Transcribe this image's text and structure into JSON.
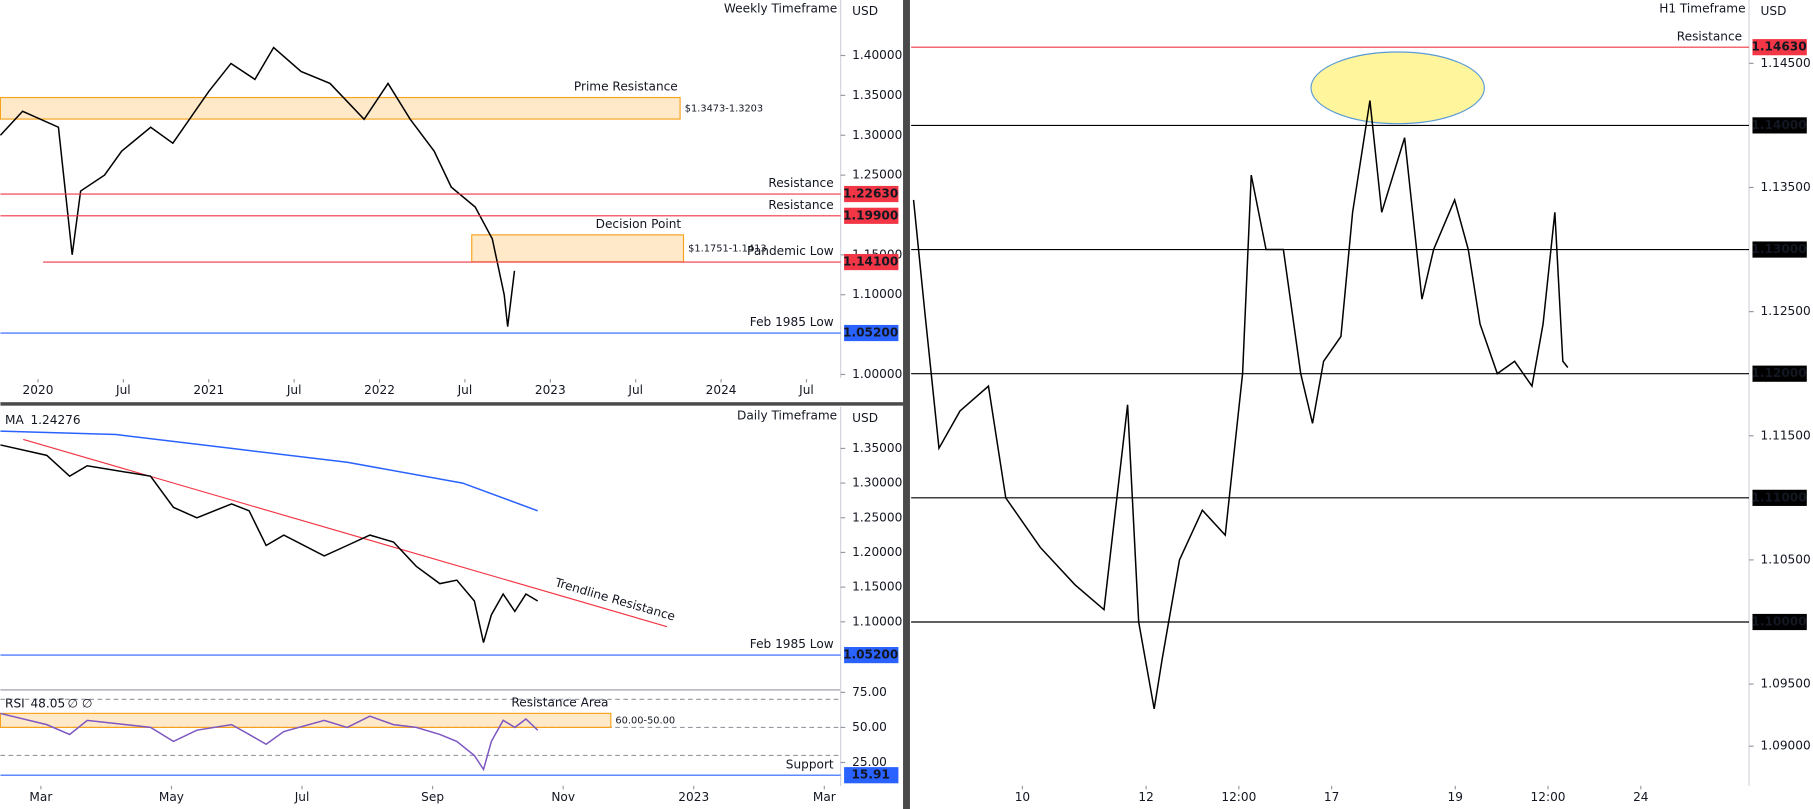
{
  "chart_data": [
    {
      "type": "line",
      "title": "Weekly Timeframe",
      "unit": "USD",
      "xlim": [
        2019.78,
        2024.7
      ],
      "ylim": [
        0.9957,
        1.4696
      ],
      "xticks": [
        {
          "value": 2020,
          "label": "2020"
        },
        {
          "value": 2020.5,
          "label": "Jul"
        },
        {
          "value": 2021,
          "label": "2021"
        },
        {
          "value": 2021.5,
          "label": "Jul"
        },
        {
          "value": 2022,
          "label": "2022"
        },
        {
          "value": 2022.5,
          "label": "Jul"
        },
        {
          "value": 2023,
          "label": "2023"
        },
        {
          "value": 2023.5,
          "label": "Jul"
        },
        {
          "value": 2024,
          "label": "2024"
        },
        {
          "value": 2024.5,
          "label": "Jul"
        }
      ],
      "yticks": [
        {
          "value": 1.0,
          "label": "1.00000"
        },
        {
          "value": 1.1,
          "label": "1.10000"
        },
        {
          "value": 1.15,
          "label": "1.15000"
        },
        {
          "value": 1.25,
          "label": "1.25000"
        },
        {
          "value": 1.3,
          "label": "1.30000"
        },
        {
          "value": 1.35,
          "label": "1.35000"
        },
        {
          "value": 1.4,
          "label": "1.40000"
        }
      ],
      "series": [
        {
          "color": "#000000",
          "x": [
            2019.78,
            2019.91,
            2020.12,
            2020.2,
            2020.25,
            2020.39,
            2020.49,
            2020.66,
            2020.79,
            2021.0,
            2021.13,
            2021.27,
            2021.38,
            2021.54,
            2021.71,
            2021.91,
            2022.05,
            2022.18,
            2022.32,
            2022.42,
            2022.56,
            2022.66,
            2022.73,
            2022.75,
            2022.79
          ],
          "values": [
            1.3,
            1.33,
            1.31,
            1.15,
            1.23,
            1.25,
            1.28,
            1.31,
            1.29,
            1.355,
            1.39,
            1.37,
            1.41,
            1.38,
            1.365,
            1.32,
            1.365,
            1.32,
            1.28,
            1.235,
            1.21,
            1.17,
            1.1,
            1.06,
            1.13
          ]
        }
      ],
      "zones": [
        {
          "name": "Prime Resistance",
          "range": [
            1.3203,
            1.3473
          ],
          "x": [
            2019.78,
            2023.76
          ],
          "label": "$1.3473-1.3203"
        },
        {
          "name": "Decision Point",
          "range": [
            1.1413,
            1.1751
          ],
          "x": [
            2022.54,
            2023.78
          ],
          "label": "$1.1751-1.1413"
        }
      ],
      "levels": [
        {
          "name": "Resistance",
          "value": 1.2263,
          "label": "1.22630",
          "color": "#f23645"
        },
        {
          "name": "Resistance",
          "value": 1.199,
          "label": "1.19900",
          "color": "#f23645"
        },
        {
          "name": "Pandemic Low",
          "value": 1.141,
          "label": "1.14100",
          "color": "#f23645",
          "from": 2020.03
        },
        {
          "name": "Feb 1985 Low",
          "value": 1.052,
          "label": "1.05200",
          "color": "#2962ff"
        }
      ]
    },
    {
      "type": "line",
      "title": "Daily Timeframe",
      "unit": "USD",
      "xlim": [
        1.38,
        14.25
      ],
      "ylim": [
        1.0017,
        1.41
      ],
      "xticks": [
        {
          "value": 2,
          "label": "Mar"
        },
        {
          "value": 4,
          "label": "May"
        },
        {
          "value": 6,
          "label": "Jul"
        },
        {
          "value": 8,
          "label": "Sep"
        },
        {
          "value": 10,
          "label": "Nov"
        },
        {
          "value": 12,
          "label": "2023"
        },
        {
          "value": 14,
          "label": "Mar"
        }
      ],
      "yticks": [
        {
          "value": 1.1,
          "label": "1.10000"
        },
        {
          "value": 1.15,
          "label": "1.15000"
        },
        {
          "value": 1.2,
          "label": "1.20000"
        },
        {
          "value": 1.25,
          "label": "1.25000"
        },
        {
          "value": 1.3,
          "label": "1.30000"
        },
        {
          "value": 1.35,
          "label": "1.35000"
        }
      ],
      "indicator": {
        "name": "MA",
        "value": 1.24276,
        "color": "#2962ff"
      },
      "series": [
        {
          "color": "#000000",
          "x": [
            1.38,
            2.09,
            2.44,
            2.71,
            3.68,
            4.03,
            4.39,
            4.92,
            5.19,
            5.45,
            5.72,
            6.34,
            6.69,
            7.04,
            7.4,
            7.75,
            8.11,
            8.37,
            8.64,
            8.78,
            8.9,
            9.08,
            9.26,
            9.43,
            9.61
          ],
          "values": [
            1.355,
            1.34,
            1.31,
            1.325,
            1.31,
            1.265,
            1.25,
            1.27,
            1.26,
            1.21,
            1.225,
            1.195,
            1.21,
            1.225,
            1.215,
            1.18,
            1.155,
            1.16,
            1.13,
            1.07,
            1.11,
            1.14,
            1.115,
            1.14,
            1.13
          ]
        },
        {
          "color": "#2962ff",
          "x": [
            1.38,
            3.15,
            4.92,
            6.69,
            8.46,
            9.61
          ],
          "values": [
            1.375,
            1.37,
            1.35,
            1.33,
            1.3,
            1.26
          ]
        }
      ],
      "trendlines": [
        {
          "name": "Trendline Resistance",
          "x": [
            1.73,
            11.59
          ],
          "y": [
            1.363,
            1.093
          ],
          "color": "#f23645"
        }
      ],
      "levels": [
        {
          "name": "Feb 1985 Low",
          "value": 1.052,
          "label": "1.05200",
          "color": "#2962ff"
        }
      ]
    },
    {
      "type": "line",
      "xlim": [
        1.38,
        14.25
      ],
      "ylim": [
        8.3,
        76.7
      ],
      "yticks": [
        {
          "value": 25,
          "label": "25.00"
        },
        {
          "value": 50,
          "label": "50.00"
        },
        {
          "value": 75,
          "label": "75.00"
        }
      ],
      "indicator": {
        "name": "RSI",
        "value": 48.05,
        "extra": "∅ ∅",
        "color": "#7e57c2"
      },
      "dashed_levels": [
        70,
        50,
        30
      ],
      "series": [
        {
          "color": "#7e57c2",
          "x": [
            1.38,
            2.09,
            2.44,
            2.71,
            3.68,
            4.03,
            4.39,
            4.92,
            5.19,
            5.45,
            5.72,
            6.34,
            6.69,
            7.04,
            7.4,
            7.75,
            8.11,
            8.37,
            8.64,
            8.78,
            8.9,
            9.08,
            9.26,
            9.43,
            9.61
          ],
          "values": [
            60,
            52,
            45,
            55,
            50,
            40,
            48,
            52,
            45,
            38,
            47,
            55,
            50,
            58,
            52,
            50,
            45,
            40,
            30,
            20,
            40,
            55,
            50,
            56,
            48
          ]
        }
      ],
      "zones": [
        {
          "name": "Resistance Area",
          "range": [
            50,
            60
          ],
          "x": [
            1.38,
            10.73
          ],
          "label": "60.00-50.00"
        }
      ],
      "levels": [
        {
          "name": "Support",
          "value": 15.91,
          "color": "#2962ff"
        }
      ]
    },
    {
      "type": "line",
      "title": "H1 Timeframe",
      "unit": "USD",
      "xlim": [
        0,
        13.55
      ],
      "ylim": [
        1.0868,
        1.1501
      ],
      "xticks": [
        {
          "value": 1.8,
          "label": "10"
        },
        {
          "value": 3.8,
          "label": "12"
        },
        {
          "value": 5.3,
          "label": "12:00"
        },
        {
          "value": 6.8,
          "label": "17"
        },
        {
          "value": 8.8,
          "label": "19"
        },
        {
          "value": 10.3,
          "label": "12:00"
        },
        {
          "value": 11.8,
          "label": "24"
        }
      ],
      "yticks": [
        {
          "value": 1.09,
          "label": "1.09000"
        },
        {
          "value": 1.095,
          "label": "1.09500"
        },
        {
          "value": 1.105,
          "label": "1.10500"
        },
        {
          "value": 1.115,
          "label": "1.11500"
        },
        {
          "value": 1.125,
          "label": "1.12500"
        },
        {
          "value": 1.135,
          "label": "1.13500"
        },
        {
          "value": 1.145,
          "label": "1.14500"
        }
      ],
      "series": [
        {
          "color": "#000000",
          "x": [
            0.04,
            0.22,
            0.45,
            0.79,
            1.25,
            1.53,
            2.09,
            2.65,
            3.12,
            3.5,
            3.68,
            3.93,
            4.06,
            4.34,
            4.71,
            5.08,
            5.36,
            5.5,
            5.74,
            6.02,
            6.3,
            6.49,
            6.67,
            6.95,
            7.14,
            7.42,
            7.61,
            7.98,
            8.26,
            8.45,
            8.79,
            9.01,
            9.2,
            9.48,
            9.76,
            10.04,
            10.22,
            10.41,
            10.54,
            10.62
          ],
          "values": [
            1.134,
            1.125,
            1.114,
            1.117,
            1.119,
            1.11,
            1.106,
            1.103,
            1.101,
            1.1175,
            1.1,
            1.093,
            1.097,
            1.105,
            1.109,
            1.107,
            1.12,
            1.136,
            1.13,
            1.13,
            1.12,
            1.116,
            1.121,
            1.123,
            1.133,
            1.142,
            1.133,
            1.139,
            1.126,
            1.13,
            1.134,
            1.13,
            1.124,
            1.12,
            1.121,
            1.119,
            1.124,
            1.133,
            1.121,
            1.1205
          ]
        }
      ],
      "levels": [
        {
          "name": "Resistance",
          "value": 1.1463,
          "label": "1.14630",
          "color": "#f23645"
        },
        {
          "value": 1.14,
          "label": "1.14000",
          "color": "#000000"
        },
        {
          "value": 1.13,
          "label": "1.13000",
          "color": "#000000"
        },
        {
          "value": 1.12,
          "label": "1.12000",
          "color": "#000000"
        },
        {
          "value": 1.11,
          "label": "1.11000",
          "color": "#000000"
        },
        {
          "value": 1.1,
          "label": "1.10000",
          "color": "#000000"
        }
      ]
    }
  ]
}
